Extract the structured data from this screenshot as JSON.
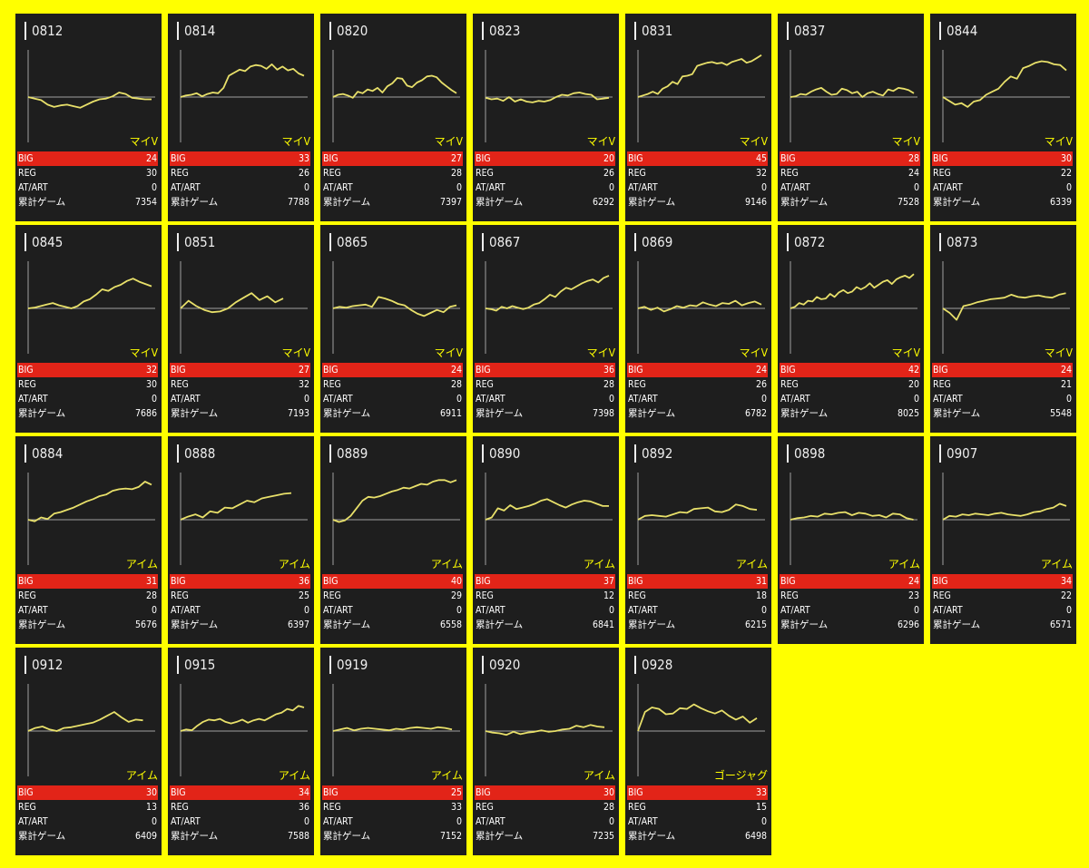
{
  "colors": {
    "background": "#ffff00",
    "card": "#1e1e1e",
    "big_row": "#e22418",
    "graph_line": "#e8e06a",
    "machine_text": "#ffff00"
  },
  "labels": {
    "big": "BIG",
    "reg": "REG",
    "at": "AT/ART",
    "games": "累計ゲーム"
  },
  "cards": [
    {
      "id": "0812",
      "machine": "マイV",
      "big": "24",
      "reg": "30",
      "at": "0",
      "games": "7354",
      "trend": [
        0,
        -4,
        -8,
        -20,
        -26,
        -22,
        -20,
        -24,
        -28,
        -20,
        -12,
        -6,
        -4,
        2,
        12,
        8,
        -2,
        -4,
        -6,
        -6
      ]
    },
    {
      "id": "0814",
      "machine": "マイV",
      "big": "33",
      "reg": "26",
      "at": "0",
      "games": "7788",
      "trend": [
        0,
        4,
        6,
        10,
        2,
        8,
        12,
        10,
        24,
        56,
        64,
        72,
        68,
        80,
        84,
        82,
        74,
        86,
        72,
        80,
        70,
        74,
        62,
        56
      ]
    },
    {
      "id": "0820",
      "machine": "マイV",
      "big": "27",
      "reg": "28",
      "at": "0",
      "games": "7397",
      "trend": [
        0,
        6,
        8,
        4,
        -2,
        14,
        10,
        20,
        16,
        24,
        12,
        28,
        36,
        50,
        48,
        30,
        26,
        38,
        44,
        54,
        56,
        52,
        38,
        28,
        18,
        10
      ]
    },
    {
      "id": "0823",
      "machine": "マイV",
      "big": "20",
      "reg": "26",
      "at": "0",
      "games": "6292",
      "trend": [
        -2,
        -6,
        -4,
        -10,
        0,
        -12,
        -6,
        -12,
        -14,
        -10,
        -12,
        -8,
        0,
        6,
        4,
        10,
        12,
        8,
        6,
        -6,
        -4,
        -2
      ]
    },
    {
      "id": "0831",
      "machine": "マイV",
      "big": "45",
      "reg": "32",
      "at": "0",
      "games": "9146",
      "trend": [
        0,
        4,
        8,
        14,
        8,
        22,
        28,
        40,
        34,
        54,
        56,
        60,
        82,
        86,
        90,
        92,
        88,
        90,
        84,
        92,
        96,
        100,
        90,
        94,
        102,
        110
      ]
    },
    {
      "id": "0837",
      "machine": "マイV",
      "big": "28",
      "reg": "24",
      "at": "0",
      "games": "7528",
      "trend": [
        0,
        2,
        8,
        6,
        14,
        20,
        24,
        14,
        6,
        8,
        22,
        18,
        10,
        14,
        0,
        10,
        14,
        8,
        4,
        20,
        16,
        24,
        22,
        18,
        10
      ]
    },
    {
      "id": "0844",
      "machine": "マイV",
      "big": "30",
      "reg": "22",
      "at": "0",
      "games": "6339",
      "trend": [
        0,
        -10,
        -20,
        -16,
        -26,
        -12,
        -8,
        6,
        14,
        22,
        40,
        54,
        48,
        76,
        82,
        90,
        94,
        92,
        86,
        84,
        70
      ]
    },
    {
      "id": "0845",
      "machine": "マイV",
      "big": "32",
      "reg": "30",
      "at": "0",
      "games": "7686",
      "trend": [
        0,
        2,
        6,
        10,
        14,
        8,
        4,
        0,
        6,
        18,
        24,
        36,
        50,
        46,
        56,
        62,
        72,
        78,
        70,
        64,
        58
      ]
    },
    {
      "id": "0851",
      "machine": "マイV",
      "big": "27",
      "reg": "32",
      "at": "0",
      "games": "7193",
      "trend": [
        0,
        20,
        6,
        -4,
        -10,
        -8,
        0,
        16,
        28,
        40,
        22,
        32,
        16,
        26
      ]
    },
    {
      "id": "0865",
      "machine": "マイV",
      "big": "24",
      "reg": "28",
      "at": "0",
      "games": "6911",
      "trend": [
        0,
        4,
        2,
        6,
        8,
        10,
        4,
        30,
        26,
        20,
        12,
        8,
        -4,
        -14,
        -20,
        -12,
        -4,
        -10,
        4,
        8
      ]
    },
    {
      "id": "0867",
      "machine": "マイV",
      "big": "36",
      "reg": "28",
      "at": "0",
      "games": "7398",
      "trend": [
        0,
        -2,
        -6,
        4,
        0,
        6,
        2,
        -2,
        2,
        10,
        14,
        24,
        36,
        30,
        44,
        54,
        50,
        58,
        66,
        72,
        76,
        68,
        80,
        86
      ]
    },
    {
      "id": "0869",
      "machine": "マイV",
      "big": "24",
      "reg": "26",
      "at": "0",
      "games": "6782",
      "trend": [
        0,
        4,
        -4,
        2,
        -8,
        -2,
        6,
        2,
        8,
        6,
        16,
        10,
        6,
        14,
        12,
        20,
        8,
        14,
        18,
        10
      ]
    },
    {
      "id": "0872",
      "machine": "マイV",
      "big": "42",
      "reg": "20",
      "at": "0",
      "games": "8025",
      "trend": [
        0,
        4,
        14,
        10,
        20,
        18,
        30,
        24,
        26,
        38,
        30,
        42,
        48,
        40,
        44,
        56,
        50,
        56,
        66,
        54,
        62,
        70,
        74,
        64,
        76,
        82,
        86,
        80,
        90
      ]
    },
    {
      "id": "0873",
      "machine": "マイV",
      "big": "24",
      "reg": "21",
      "at": "0",
      "games": "5548",
      "trend": [
        0,
        -12,
        -30,
        6,
        10,
        16,
        20,
        24,
        26,
        28,
        36,
        30,
        28,
        32,
        34,
        30,
        28,
        36,
        40
      ]
    },
    {
      "id": "0884",
      "machine": "アイム",
      "big": "31",
      "reg": "28",
      "at": "0",
      "games": "5676",
      "trend": [
        0,
        -4,
        6,
        2,
        16,
        20,
        26,
        32,
        40,
        48,
        54,
        62,
        66,
        76,
        80,
        82,
        80,
        86,
        100,
        92
      ]
    },
    {
      "id": "0888",
      "machine": "アイム",
      "big": "36",
      "reg": "25",
      "at": "0",
      "games": "6397",
      "trend": [
        0,
        8,
        14,
        6,
        22,
        18,
        32,
        30,
        40,
        50,
        46,
        56,
        60,
        64,
        68,
        70
      ]
    },
    {
      "id": "0889",
      "machine": "アイム",
      "big": "40",
      "reg": "29",
      "at": "0",
      "games": "6558",
      "trend": [
        0,
        -6,
        -2,
        10,
        30,
        50,
        60,
        58,
        62,
        68,
        74,
        78,
        84,
        82,
        88,
        94,
        92,
        100,
        104,
        104,
        98,
        104
      ]
    },
    {
      "id": "0890",
      "machine": "アイム",
      "big": "37",
      "reg": "12",
      "at": "0",
      "games": "6841",
      "trend": [
        0,
        6,
        30,
        24,
        38,
        28,
        32,
        36,
        42,
        50,
        54,
        46,
        38,
        32,
        40,
        46,
        50,
        48,
        42,
        36,
        36
      ]
    },
    {
      "id": "0892",
      "machine": "アイム",
      "big": "31",
      "reg": "18",
      "at": "0",
      "games": "6215",
      "trend": [
        0,
        10,
        12,
        10,
        8,
        14,
        20,
        18,
        28,
        30,
        32,
        22,
        20,
        26,
        40,
        36,
        28,
        26
      ]
    },
    {
      "id": "0898",
      "machine": "アイム",
      "big": "24",
      "reg": "23",
      "at": "0",
      "games": "6296",
      "trend": [
        0,
        4,
        6,
        10,
        8,
        16,
        14,
        18,
        20,
        12,
        18,
        16,
        10,
        12,
        6,
        16,
        14,
        4,
        0
      ]
    },
    {
      "id": "0907",
      "machine": "アイム",
      "big": "34",
      "reg": "22",
      "at": "0",
      "games": "6571",
      "trend": [
        0,
        10,
        8,
        14,
        12,
        16,
        14,
        12,
        16,
        18,
        14,
        12,
        10,
        14,
        20,
        22,
        28,
        32,
        42,
        36
      ]
    },
    {
      "id": "0912",
      "machine": "アイム",
      "big": "30",
      "reg": "13",
      "at": "0",
      "games": "6409",
      "trend": [
        0,
        8,
        12,
        4,
        0,
        8,
        10,
        14,
        18,
        22,
        30,
        40,
        50,
        36,
        24,
        30,
        28
      ]
    },
    {
      "id": "0915",
      "machine": "アイム",
      "big": "34",
      "reg": "36",
      "at": "0",
      "games": "7588",
      "trend": [
        0,
        4,
        2,
        14,
        24,
        30,
        28,
        32,
        24,
        20,
        24,
        30,
        22,
        28,
        32,
        28,
        36,
        44,
        48,
        58,
        54,
        66,
        62
      ]
    },
    {
      "id": "0919",
      "machine": "アイム",
      "big": "25",
      "reg": "33",
      "at": "0",
      "games": "7152",
      "trend": [
        0,
        4,
        8,
        2,
        6,
        8,
        6,
        4,
        2,
        6,
        4,
        8,
        10,
        8,
        6,
        10,
        8,
        4
      ]
    },
    {
      "id": "0920",
      "machine": "アイム",
      "big": "30",
      "reg": "28",
      "at": "0",
      "games": "7235",
      "trend": [
        0,
        -4,
        -6,
        -10,
        -2,
        -8,
        -4,
        -2,
        2,
        -2,
        0,
        4,
        6,
        14,
        10,
        16,
        12,
        10
      ]
    },
    {
      "id": "0928",
      "machine": "ゴージャグ",
      "big": "33",
      "reg": "15",
      "at": "0",
      "games": "6498",
      "trend": [
        0,
        50,
        62,
        58,
        44,
        46,
        60,
        58,
        70,
        60,
        52,
        46,
        54,
        40,
        30,
        38,
        22,
        34
      ]
    }
  ]
}
